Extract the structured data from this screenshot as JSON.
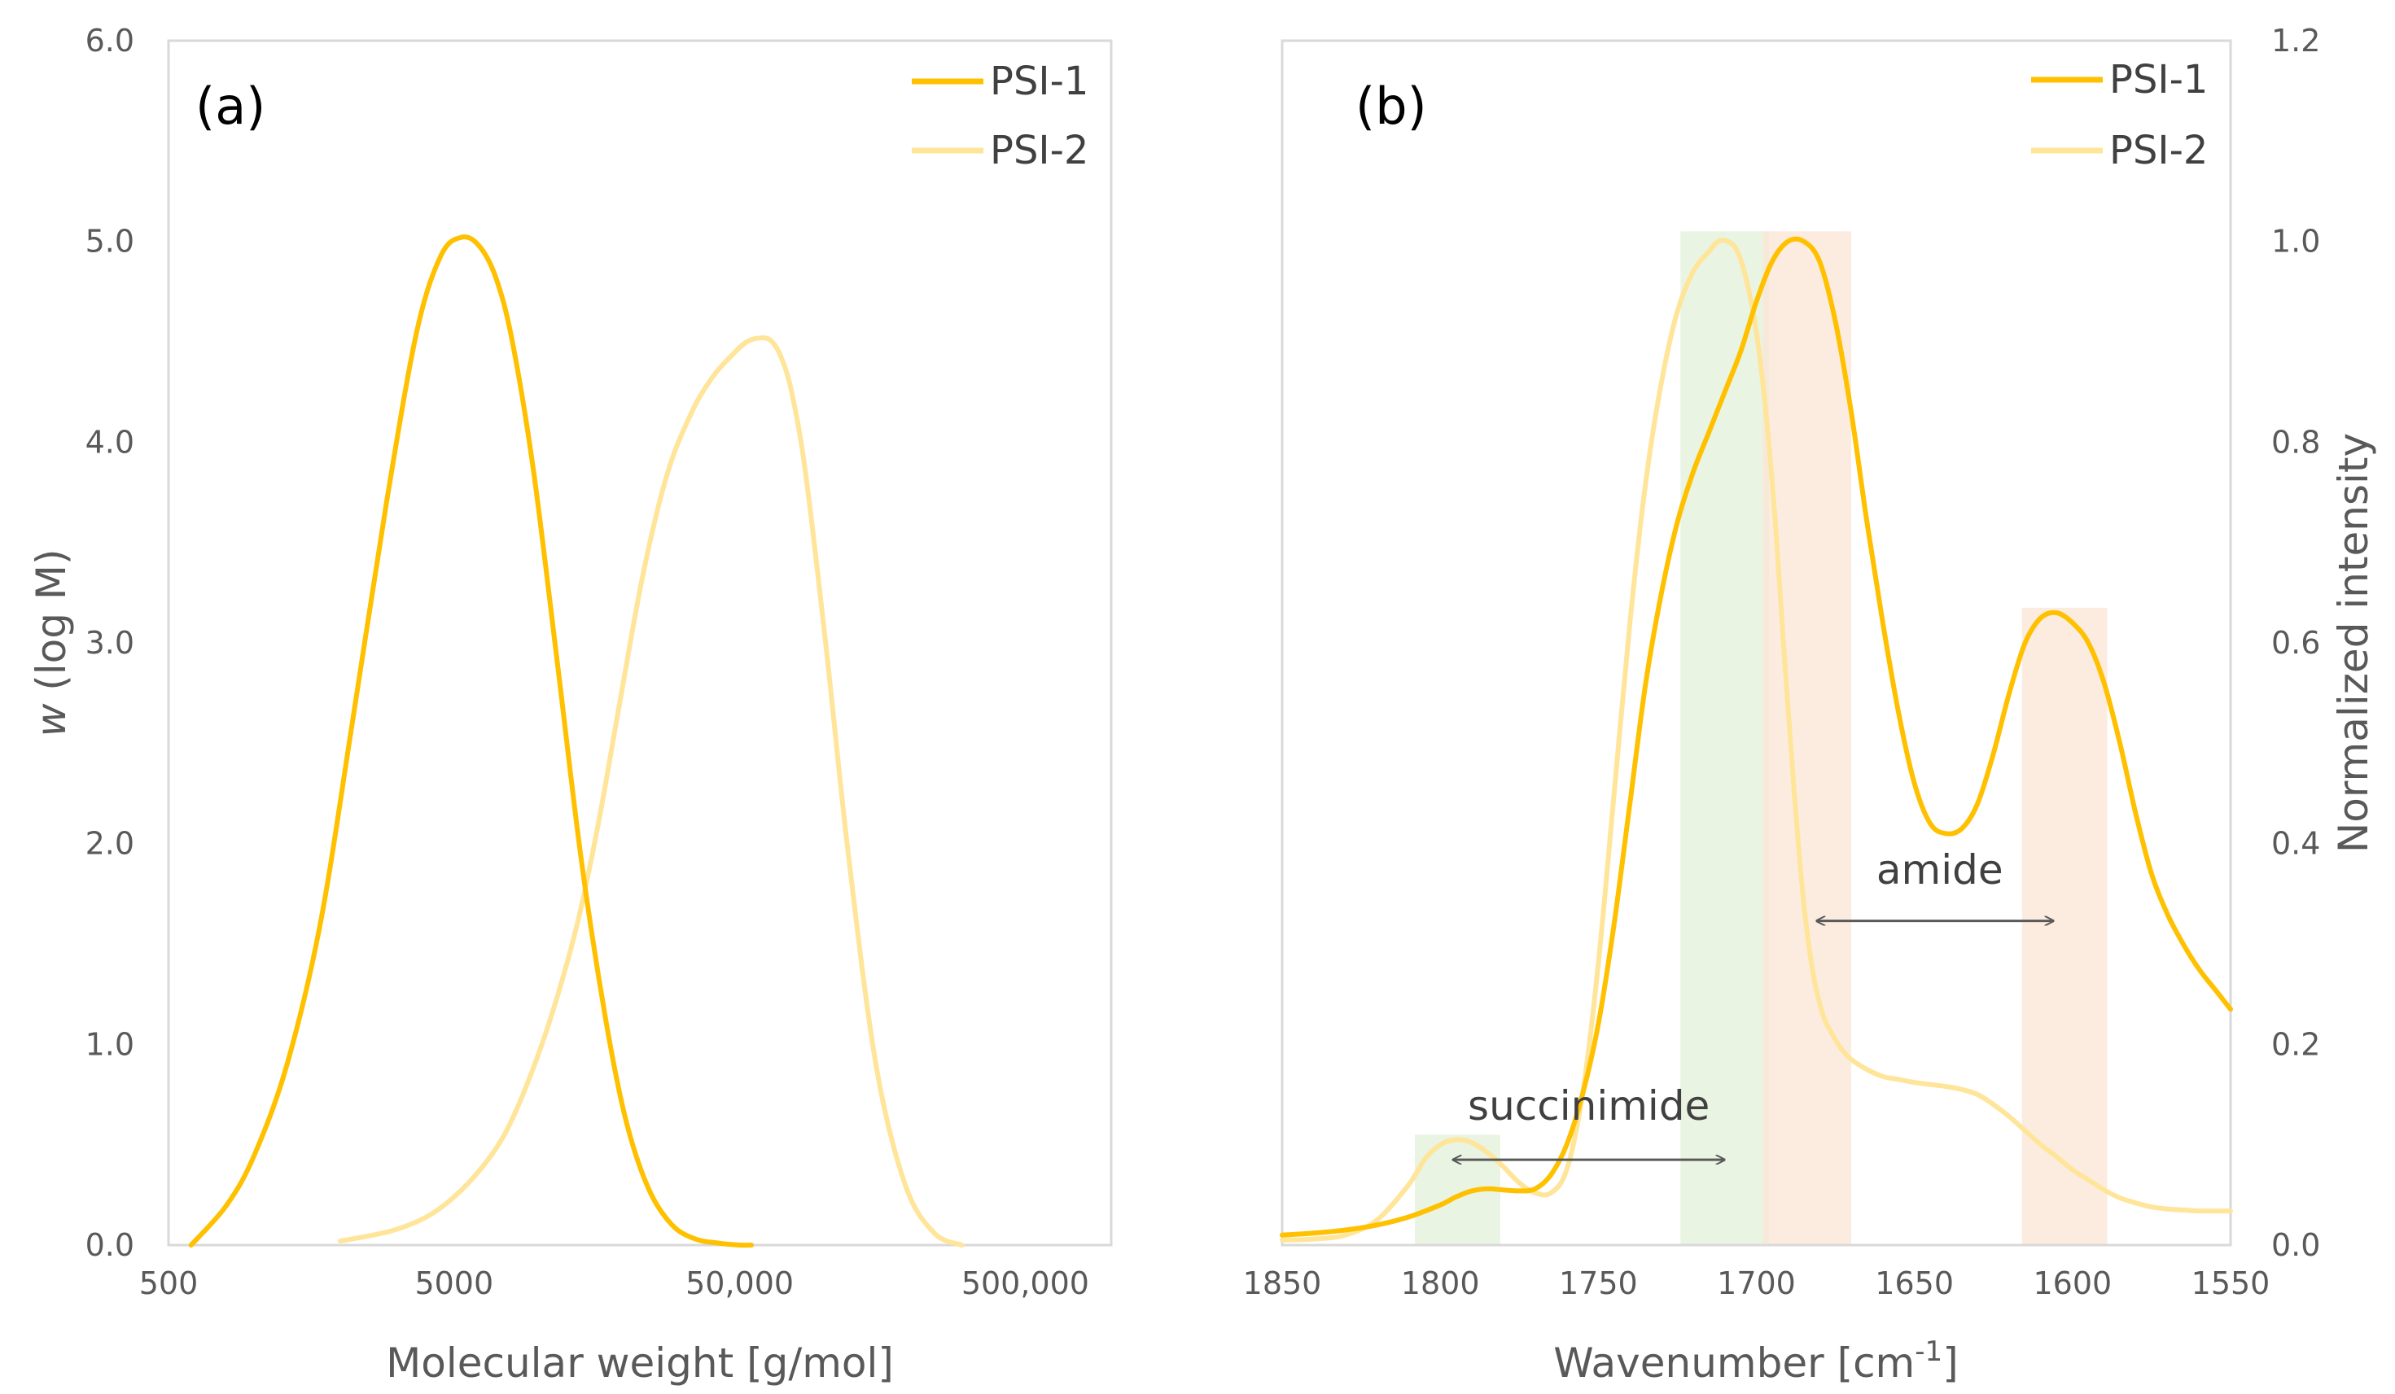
{
  "colors": {
    "psi1": "#FFC000",
    "psi2": "#FFE599",
    "succinimide_band": "#E2F0D9",
    "amide_band": "#FBE5D6",
    "axis": "#D9D9D9",
    "arrow": "#595959"
  },
  "chart_data": [
    {
      "id": "a",
      "type": "line",
      "panel_label": "(a)",
      "xlabel": "Molecular weight [g/mol]",
      "ylabel_italic": "w",
      "ylabel_rest": " (log M)",
      "x_scale": "log",
      "xlim": [
        500,
        1000000
      ],
      "ylim": [
        0,
        6
      ],
      "x_ticks": [
        {
          "value": 500,
          "label": "500"
        },
        {
          "value": 5000,
          "label": "5000"
        },
        {
          "value": 50000,
          "label": "50,000"
        },
        {
          "value": 500000,
          "label": "500,000"
        }
      ],
      "y_ticks": [
        {
          "value": 0,
          "label": "0.0"
        },
        {
          "value": 1,
          "label": "1.0"
        },
        {
          "value": 2,
          "label": "2.0"
        },
        {
          "value": 3,
          "label": "3.0"
        },
        {
          "value": 4,
          "label": "4.0"
        },
        {
          "value": 5,
          "label": "5.0"
        },
        {
          "value": 6,
          "label": "6.0"
        }
      ],
      "legend": [
        {
          "name": "PSI-1",
          "color_key": "psi1"
        },
        {
          "name": "PSI-2",
          "color_key": "psi2"
        }
      ],
      "series": [
        {
          "name": "PSI-1",
          "color_key": "psi1",
          "x": [
            600,
            800,
            1000,
            1300,
            1700,
            2200,
            2900,
            3700,
            4500,
            5300,
            6100,
            7000,
            8000,
            9500,
            11500,
            14000,
            17000,
            20000,
            24000,
            29000,
            35000,
            42000,
            50000,
            55000
          ],
          "y": [
            0.0,
            0.2,
            0.45,
            0.9,
            1.6,
            2.6,
            3.7,
            4.55,
            4.93,
            5.02,
            4.98,
            4.82,
            4.5,
            3.85,
            2.9,
            1.9,
            1.12,
            0.62,
            0.28,
            0.1,
            0.03,
            0.01,
            0.0,
            0.0
          ]
        },
        {
          "name": "PSI-2",
          "color_key": "psi2",
          "x": [
            2000,
            3000,
            4000,
            5000,
            6200,
            7500,
            9000,
            11000,
            13500,
            16000,
            19000,
            23000,
            28000,
            34000,
            40000,
            46000,
            53000,
            60000,
            65000,
            70000,
            76000,
            85000,
            100000,
            120000,
            150000,
            190000,
            240000,
            300000
          ],
          "y": [
            0.02,
            0.07,
            0.14,
            0.24,
            0.38,
            0.55,
            0.8,
            1.15,
            1.6,
            2.1,
            2.7,
            3.35,
            3.85,
            4.15,
            4.32,
            4.42,
            4.5,
            4.52,
            4.5,
            4.42,
            4.25,
            3.85,
            3.0,
            1.95,
            0.9,
            0.3,
            0.06,
            0.0
          ]
        }
      ]
    },
    {
      "id": "b",
      "type": "line",
      "panel_label": "(b)",
      "xlabel_main": "Wavenumber [cm",
      "xlabel_sup": "-1",
      "xlabel_end": "]",
      "ylabel": "Normalized intensity",
      "xlim": [
        1850,
        1550
      ],
      "x_reversed": true,
      "ylim": [
        0,
        1.2
      ],
      "y_axis_side": "right",
      "x_ticks": [
        {
          "value": 1850,
          "label": "1850"
        },
        {
          "value": 1800,
          "label": "1800"
        },
        {
          "value": 1750,
          "label": "1750"
        },
        {
          "value": 1700,
          "label": "1700"
        },
        {
          "value": 1650,
          "label": "1650"
        },
        {
          "value": 1600,
          "label": "1600"
        },
        {
          "value": 1550,
          "label": "1550"
        }
      ],
      "y_ticks": [
        {
          "value": 0,
          "label": "0.0"
        },
        {
          "value": 0.2,
          "label": "0.2"
        },
        {
          "value": 0.4,
          "label": "0.4"
        },
        {
          "value": 0.6,
          "label": "0.6"
        },
        {
          "value": 0.8,
          "label": "0.8"
        },
        {
          "value": 1.0,
          "label": "1.0"
        },
        {
          "value": 1.2,
          "label": "1.2"
        }
      ],
      "legend": [
        {
          "name": "PSI-1",
          "color_key": "psi1"
        },
        {
          "name": "PSI-2",
          "color_key": "psi2"
        }
      ],
      "bands": [
        {
          "group": "succinimide",
          "from": 1808,
          "to": 1781,
          "height": 0.11,
          "color_key": "succinimide_band"
        },
        {
          "group": "succinimide",
          "from": 1724,
          "to": 1696,
          "height": 1.01,
          "color_key": "succinimide_band"
        },
        {
          "group": "amide",
          "from": 1698,
          "to": 1670,
          "height": 1.01,
          "color_key": "amide_band"
        },
        {
          "group": "amide",
          "from": 1616,
          "to": 1589,
          "height": 0.635,
          "color_key": "amide_band"
        }
      ],
      "annotations": [
        {
          "text": "succinimide",
          "arrow_from": 1796,
          "arrow_to": 1710,
          "arrow_y": 0.085,
          "text_x": 1753,
          "text_y": 0.125
        },
        {
          "text": "amide",
          "arrow_from": 1681,
          "arrow_to": 1606,
          "arrow_y": 0.323,
          "text_x": 1642,
          "text_y": 0.36
        }
      ],
      "series": [
        {
          "name": "PSI-1",
          "color_key": "psi1",
          "x": [
            1850,
            1840,
            1830,
            1820,
            1810,
            1800,
            1795,
            1790,
            1785,
            1780,
            1775,
            1770,
            1765,
            1760,
            1755,
            1750,
            1745,
            1740,
            1735,
            1730,
            1725,
            1720,
            1715,
            1710,
            1705,
            1700,
            1695,
            1690,
            1685,
            1680,
            1675,
            1670,
            1665,
            1660,
            1655,
            1650,
            1645,
            1640,
            1635,
            1630,
            1625,
            1620,
            1615,
            1610,
            1605,
            1600,
            1595,
            1590,
            1585,
            1580,
            1575,
            1570,
            1565,
            1560,
            1555,
            1550
          ],
          "y": [
            0.01,
            0.012,
            0.015,
            0.02,
            0.028,
            0.04,
            0.048,
            0.054,
            0.056,
            0.055,
            0.054,
            0.056,
            0.07,
            0.1,
            0.15,
            0.22,
            0.32,
            0.44,
            0.56,
            0.65,
            0.72,
            0.77,
            0.81,
            0.85,
            0.89,
            0.94,
            0.98,
            1.0,
            1.0,
            0.98,
            0.92,
            0.83,
            0.72,
            0.62,
            0.53,
            0.46,
            0.42,
            0.41,
            0.415,
            0.44,
            0.49,
            0.55,
            0.6,
            0.625,
            0.63,
            0.62,
            0.6,
            0.56,
            0.5,
            0.43,
            0.37,
            0.33,
            0.3,
            0.275,
            0.255,
            0.235
          ]
        },
        {
          "name": "PSI-2",
          "color_key": "psi2",
          "x": [
            1850,
            1840,
            1830,
            1820,
            1810,
            1805,
            1800,
            1795,
            1790,
            1785,
            1780,
            1775,
            1770,
            1765,
            1760,
            1755,
            1750,
            1745,
            1740,
            1735,
            1730,
            1725,
            1720,
            1715,
            1712,
            1709,
            1706,
            1703,
            1700,
            1697,
            1694,
            1691,
            1688,
            1685,
            1682,
            1679,
            1676,
            1673,
            1670,
            1665,
            1660,
            1655,
            1650,
            1645,
            1640,
            1635,
            1630,
            1625,
            1620,
            1615,
            1610,
            1605,
            1600,
            1595,
            1590,
            1585,
            1580,
            1575,
            1570,
            1565,
            1560,
            1555,
            1550
          ],
          "y": [
            0.005,
            0.006,
            0.01,
            0.025,
            0.06,
            0.085,
            0.1,
            0.105,
            0.102,
            0.092,
            0.078,
            0.062,
            0.052,
            0.052,
            0.075,
            0.15,
            0.28,
            0.45,
            0.62,
            0.76,
            0.86,
            0.93,
            0.97,
            0.99,
            1.0,
            1.0,
            0.99,
            0.96,
            0.91,
            0.83,
            0.72,
            0.58,
            0.45,
            0.34,
            0.27,
            0.23,
            0.21,
            0.195,
            0.185,
            0.175,
            0.168,
            0.165,
            0.162,
            0.16,
            0.158,
            0.155,
            0.15,
            0.14,
            0.128,
            0.114,
            0.1,
            0.088,
            0.075,
            0.065,
            0.055,
            0.047,
            0.042,
            0.038,
            0.036,
            0.035,
            0.034,
            0.034,
            0.034
          ]
        }
      ]
    }
  ]
}
